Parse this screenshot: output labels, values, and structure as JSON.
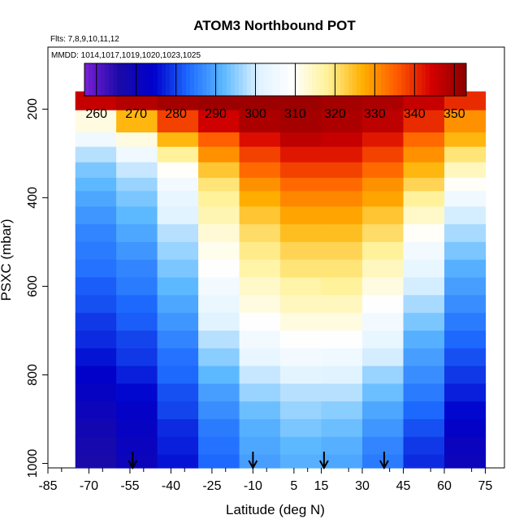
{
  "chart_data": {
    "type": "heatmap",
    "title": "ATOM3 Northbound POT",
    "subtitle_flights": "Flts: 7,8,9,10,11,12",
    "subtitle_dates": "MMDD: 1014,1017,1019,1020,1023,1025",
    "xlabel": "Latitude (deg N)",
    "ylabel": "PSXC (mbar)",
    "xlim": [
      -85,
      82
    ],
    "ylim": [
      1010,
      60
    ],
    "y_reversed": true,
    "x_ticks": [
      "-85",
      "-70",
      "-55",
      "-40",
      "-25",
      "-10",
      "5",
      "15",
      "30",
      "45",
      "60",
      "75"
    ],
    "y_ticks": [
      "200",
      "400",
      "600",
      "800",
      "1000"
    ],
    "colorbar": {
      "min": 257,
      "max": 353,
      "ticks": [
        "260",
        "270",
        "280",
        "290",
        "300",
        "310",
        "320",
        "330",
        "340",
        "350"
      ],
      "stops": [
        "#7a1fd6",
        "#1a0aa8",
        "#0000cc",
        "#1e6bff",
        "#5cb8ff",
        "#dff2ff",
        "#ffffff",
        "#fff29a",
        "#ffb000",
        "#ff5a00",
        "#d40000",
        "#8b0000"
      ]
    },
    "section": {
      "p_levels": [
        170,
        235,
        270,
        300,
        340,
        370,
        400,
        440,
        480,
        520,
        560,
        600,
        640,
        680,
        720,
        760,
        800,
        840,
        880,
        920,
        960,
        1000
      ],
      "lat_edges": [
        -75,
        -60,
        -45,
        -30,
        -15,
        0,
        15,
        30,
        45,
        60,
        75
      ],
      "potential_temperature_K": [
        [
          346,
          348,
          350,
          351,
          351,
          351,
          350,
          349,
          346,
          340
        ],
        [
          312,
          326,
          338,
          345,
          349,
          350,
          349,
          347,
          340,
          330
        ],
        [
          305,
          312,
          326,
          335,
          343,
          347,
          346,
          342,
          334,
          326
        ],
        [
          298,
          305,
          318,
          330,
          338,
          342,
          342,
          338,
          330,
          320
        ],
        [
          294,
          299,
          310,
          324,
          334,
          338,
          338,
          334,
          326,
          315
        ],
        [
          292,
          296,
          306,
          320,
          330,
          334,
          334,
          330,
          322,
          310
        ],
        [
          290,
          294,
          303,
          318,
          327,
          331,
          331,
          328,
          318,
          305
        ],
        [
          288,
          292,
          301,
          316,
          324,
          328,
          328,
          324,
          314,
          300
        ],
        [
          286,
          290,
          298,
          313,
          321,
          325,
          325,
          321,
          310,
          297
        ],
        [
          285,
          288,
          296,
          311,
          319,
          322,
          322,
          318,
          306,
          294
        ],
        [
          284,
          286,
          294,
          309,
          317,
          320,
          320,
          315,
          303,
          291
        ],
        [
          282,
          285,
          292,
          306,
          314,
          317,
          318,
          312,
          300,
          289
        ],
        [
          281,
          283,
          290,
          304,
          312,
          315,
          315,
          309,
          297,
          287
        ],
        [
          279,
          282,
          288,
          301,
          309,
          312,
          312,
          306,
          294,
          285
        ],
        [
          278,
          280,
          286,
          298,
          306,
          309,
          309,
          303,
          291,
          283
        ],
        [
          276,
          279,
          284,
          295,
          303,
          306,
          305,
          300,
          289,
          281
        ],
        [
          274,
          277,
          283,
          292,
          299,
          302,
          301,
          296,
          287,
          279
        ],
        [
          272,
          275,
          281,
          289,
          296,
          298,
          298,
          293,
          285,
          277
        ],
        [
          270,
          273,
          280,
          287,
          293,
          296,
          295,
          290,
          283,
          275
        ],
        [
          268,
          272,
          278,
          285,
          291,
          294,
          293,
          288,
          281,
          273
        ],
        [
          267,
          271,
          277,
          284,
          290,
          292,
          291,
          286,
          279,
          271
        ],
        [
          266,
          270,
          276,
          283,
          289,
          291,
          290,
          285,
          278,
          270
        ]
      ]
    },
    "markers": {
      "description_free": true,
      "latitudes": [
        -54,
        -10,
        16,
        38
      ]
    }
  }
}
